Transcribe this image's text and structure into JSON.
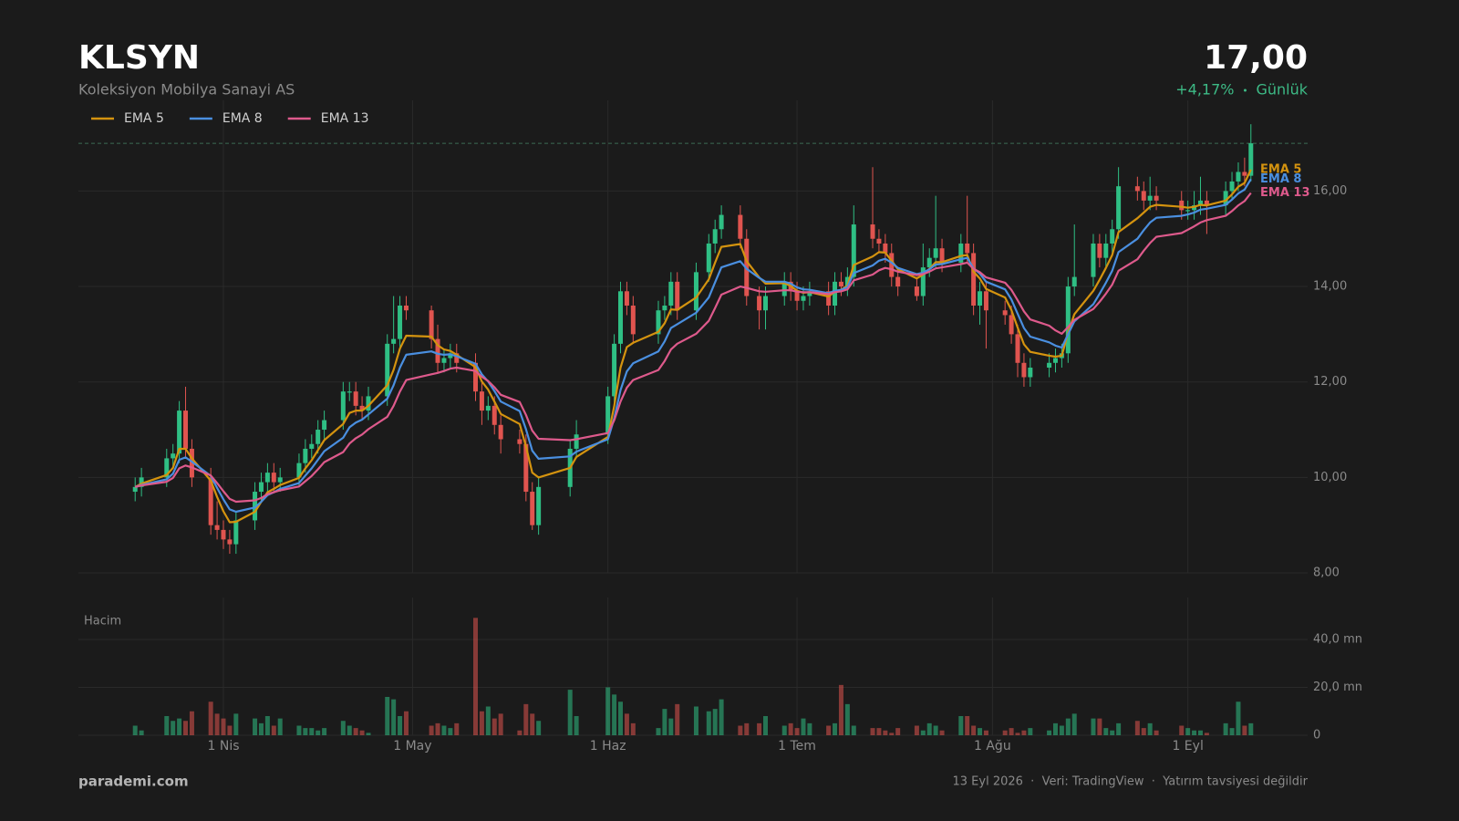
{
  "chart_data": {
    "type": "candlestick",
    "title": "KLSYN",
    "subtitle": "Koleksiyon Mobilya Sanayi AS",
    "last_price": {
      "value": 17,
      "label": "17,00"
    },
    "change": {
      "value": 4.17,
      "label": "+4,17%"
    },
    "period": "Günlük",
    "volume_label": "Hacim",
    "brand": "parademi.com",
    "footer": "13 Eyl 2026  ·  Veri: TradingView  ·  Yatırım tavsiyesi değildir",
    "up_color": "#2fbf84",
    "down_color": "#e0544f",
    "change_color": "#3dbb86",
    "x": [
      "2026-03-18",
      "2026-03-19",
      "2026-03-23",
      "2026-03-24",
      "2026-03-25",
      "2026-03-26",
      "2026-03-27",
      "2026-03-30",
      "2026-03-31",
      "2026-04-01",
      "2026-04-02",
      "2026-04-03",
      "2026-04-06",
      "2026-04-07",
      "2026-04-08",
      "2026-04-09",
      "2026-04-10",
      "2026-04-13",
      "2026-04-14",
      "2026-04-15",
      "2026-04-16",
      "2026-04-17",
      "2026-04-20",
      "2026-04-21",
      "2026-04-22",
      "2026-04-23",
      "2026-04-24",
      "2026-04-27",
      "2026-04-28",
      "2026-04-29",
      "2026-04-30",
      "2026-05-04",
      "2026-05-05",
      "2026-05-06",
      "2026-05-07",
      "2026-05-08",
      "2026-05-11",
      "2026-05-12",
      "2026-05-13",
      "2026-05-14",
      "2026-05-15",
      "2026-05-18",
      "2026-05-19",
      "2026-05-20",
      "2026-05-21",
      "2026-05-26",
      "2026-05-27",
      "2026-06-01",
      "2026-06-02",
      "2026-06-03",
      "2026-06-04",
      "2026-06-05",
      "2026-06-09",
      "2026-06-10",
      "2026-06-11",
      "2026-06-12",
      "2026-06-15",
      "2026-06-17",
      "2026-06-18",
      "2026-06-19",
      "2026-06-22",
      "2026-06-23",
      "2026-06-25",
      "2026-06-26",
      "2026-06-29",
      "2026-06-30",
      "2026-07-01",
      "2026-07-02",
      "2026-07-03",
      "2026-07-06",
      "2026-07-07",
      "2026-07-08",
      "2026-07-09",
      "2026-07-10",
      "2026-07-13",
      "2026-07-14",
      "2026-07-15",
      "2026-07-16",
      "2026-07-17",
      "2026-07-20",
      "2026-07-21",
      "2026-07-22",
      "2026-07-23",
      "2026-07-24",
      "2026-07-27",
      "2026-07-28",
      "2026-07-29",
      "2026-07-30",
      "2026-07-31",
      "2026-08-03",
      "2026-08-04",
      "2026-08-05",
      "2026-08-06",
      "2026-08-07",
      "2026-08-10",
      "2026-08-11",
      "2026-08-12",
      "2026-08-13",
      "2026-08-14",
      "2026-08-17",
      "2026-08-18",
      "2026-08-19",
      "2026-08-20",
      "2026-08-21",
      "2026-08-24",
      "2026-08-25",
      "2026-08-26",
      "2026-08-27",
      "2026-08-31",
      "2026-09-01",
      "2026-09-02",
      "2026-09-03",
      "2026-09-04",
      "2026-09-07",
      "2026-09-08",
      "2026-09-09",
      "2026-09-10",
      "2026-09-11"
    ],
    "open": [
      9.7,
      9.8,
      10.0,
      10.4,
      10.5,
      11.4,
      10.6,
      10.0,
      9.0,
      8.9,
      8.7,
      8.6,
      9.1,
      9.7,
      9.9,
      10.1,
      9.9,
      10.0,
      10.3,
      10.6,
      10.7,
      11.0,
      11.2,
      11.8,
      11.8,
      11.5,
      11.4,
      11.7,
      12.8,
      12.9,
      13.6,
      13.5,
      12.9,
      12.4,
      12.5,
      12.6,
      12.4,
      11.8,
      11.4,
      11.5,
      11.1,
      10.8,
      10.7,
      9.7,
      9.0,
      9.8,
      10.6,
      10.9,
      11.7,
      12.8,
      13.9,
      13.6,
      13.0,
      13.5,
      13.6,
      14.1,
      13.5,
      14.3,
      14.9,
      15.2,
      15.5,
      15.0,
      13.8,
      13.5,
      13.8,
      14.1,
      13.9,
      13.7,
      13.8,
      13.9,
      13.6,
      14.1,
      14.0,
      14.2,
      15.3,
      15.0,
      14.9,
      14.7,
      14.2,
      14.0,
      13.8,
      14.4,
      14.6,
      14.8,
      14.5,
      14.9,
      14.7,
      13.6,
      13.9,
      13.5,
      13.4,
      13.0,
      12.4,
      12.1,
      12.3,
      12.4,
      12.5,
      12.6,
      14.0,
      14.2,
      14.9,
      14.6,
      14.9,
      15.2,
      16.1,
      16.0,
      15.8,
      15.9,
      15.8,
      15.6,
      15.6,
      15.7,
      15.8,
      15.7,
      16.0,
      16.2,
      16.4,
      16.32
    ],
    "high": [
      10.0,
      10.2,
      10.6,
      10.7,
      11.6,
      11.9,
      10.8,
      10.2,
      9.5,
      9.1,
      8.9,
      9.3,
      9.9,
      10.1,
      10.3,
      10.3,
      10.2,
      10.5,
      10.8,
      10.9,
      11.2,
      11.4,
      12.0,
      12.0,
      12.0,
      11.7,
      11.9,
      13.0,
      13.8,
      13.8,
      13.8,
      13.6,
      13.2,
      12.7,
      12.8,
      12.8,
      12.6,
      12.0,
      11.7,
      11.7,
      11.3,
      11.0,
      10.9,
      9.9,
      10.0,
      10.8,
      11.2,
      11.9,
      13.0,
      14.1,
      14.1,
      13.8,
      13.7,
      13.8,
      14.3,
      14.3,
      14.5,
      15.1,
      15.4,
      15.7,
      15.7,
      15.2,
      14.0,
      14.0,
      14.3,
      14.3,
      14.1,
      14.0,
      14.1,
      14.1,
      14.3,
      14.3,
      14.4,
      15.7,
      16.5,
      15.2,
      15.1,
      14.9,
      14.4,
      14.2,
      14.9,
      14.8,
      15.9,
      15.0,
      15.1,
      15.9,
      14.9,
      14.1,
      14.1,
      13.7,
      13.6,
      13.2,
      12.6,
      12.5,
      12.6,
      12.7,
      12.8,
      14.2,
      15.3,
      15.1,
      15.1,
      15.1,
      15.4,
      16.5,
      16.3,
      16.2,
      16.3,
      16.1,
      16.0,
      15.8,
      16.0,
      16.3,
      16.0,
      16.2,
      16.4,
      16.6,
      16.7,
      17.4
    ],
    "low": [
      9.5,
      9.6,
      9.8,
      10.2,
      10.3,
      10.4,
      9.8,
      8.8,
      8.7,
      8.5,
      8.4,
      8.4,
      8.9,
      9.5,
      9.7,
      9.7,
      9.7,
      9.8,
      10.1,
      10.4,
      10.5,
      10.8,
      11.0,
      11.6,
      11.3,
      11.2,
      11.2,
      11.5,
      12.6,
      12.7,
      13.3,
      12.7,
      12.2,
      12.2,
      12.3,
      12.2,
      11.6,
      11.1,
      11.2,
      10.9,
      10.5,
      10.5,
      9.5,
      8.9,
      8.8,
      9.6,
      10.4,
      10.7,
      11.5,
      12.6,
      13.4,
      12.8,
      12.8,
      13.3,
      13.4,
      13.3,
      13.3,
      14.1,
      14.7,
      15.0,
      14.8,
      13.6,
      13.1,
      13.1,
      13.6,
      13.7,
      13.5,
      13.5,
      13.6,
      13.4,
      13.4,
      13.8,
      13.8,
      14.0,
      14.8,
      14.7,
      14.5,
      14.0,
      13.8,
      13.7,
      13.6,
      14.2,
      14.4,
      14.3,
      14.3,
      14.5,
      13.4,
      13.2,
      12.7,
      13.2,
      12.8,
      12.1,
      11.9,
      11.9,
      12.1,
      12.2,
      12.3,
      12.4,
      13.8,
      14.0,
      14.4,
      14.4,
      14.7,
      15.0,
      15.8,
      15.6,
      15.6,
      15.6,
      15.4,
      15.4,
      15.4,
      15.5,
      15.1,
      15.5,
      15.8,
      16.0,
      16.1,
      16.2
    ],
    "close": [
      9.8,
      10.0,
      10.4,
      10.5,
      11.4,
      10.6,
      10.0,
      9.0,
      8.9,
      8.7,
      8.6,
      9.1,
      9.7,
      9.9,
      10.1,
      9.9,
      10.0,
      10.3,
      10.6,
      10.7,
      11.0,
      11.2,
      11.8,
      11.8,
      11.5,
      11.4,
      11.7,
      12.8,
      12.9,
      13.6,
      13.5,
      12.9,
      12.4,
      12.5,
      12.6,
      12.4,
      11.8,
      11.4,
      11.5,
      11.1,
      10.8,
      10.7,
      9.7,
      9.0,
      9.8,
      10.6,
      10.9,
      11.7,
      12.8,
      13.9,
      13.6,
      13.0,
      13.5,
      13.6,
      14.1,
      13.5,
      14.3,
      14.9,
      15.2,
      15.5,
      15.0,
      13.8,
      13.5,
      13.8,
      14.1,
      13.9,
      13.7,
      13.8,
      13.9,
      13.6,
      14.1,
      14.0,
      14.2,
      15.3,
      15.0,
      14.9,
      14.7,
      14.2,
      14.0,
      13.8,
      14.4,
      14.6,
      14.8,
      14.5,
      14.9,
      14.7,
      13.6,
      13.9,
      13.5,
      13.4,
      13.0,
      12.4,
      12.1,
      12.3,
      12.4,
      12.5,
      12.6,
      14.0,
      14.2,
      14.9,
      14.6,
      14.9,
      15.2,
      16.1,
      16.0,
      15.8,
      15.9,
      15.8,
      15.6,
      15.6,
      15.7,
      15.8,
      15.7,
      16.0,
      16.2,
      16.4,
      16.32,
      17.0
    ],
    "volume": [
      4,
      2,
      8,
      6,
      7,
      6,
      10,
      14,
      9,
      7,
      4,
      9,
      7,
      5,
      8,
      4,
      7,
      4,
      3,
      3,
      2,
      3,
      6,
      4,
      3,
      2,
      1,
      16,
      15,
      8,
      10,
      4,
      5,
      4,
      3,
      5,
      49,
      10,
      12,
      7,
      9,
      2,
      13,
      9,
      6,
      19,
      8,
      20,
      17,
      14,
      9,
      5,
      3,
      11,
      7,
      13,
      12,
      10,
      11,
      15,
      4,
      5,
      5,
      8,
      4,
      5,
      3,
      7,
      5,
      4,
      5,
      21,
      13,
      4,
      3,
      3,
      2,
      1,
      3,
      4,
      2,
      5,
      4,
      2,
      8,
      8,
      4,
      3,
      2,
      2,
      3,
      1,
      2,
      3,
      2,
      5,
      4,
      7,
      9,
      7,
      7,
      3,
      2,
      5,
      6,
      3,
      5,
      2,
      4,
      3,
      2,
      2,
      1,
      5,
      3,
      14,
      4,
      5
    ],
    "series": [
      {
        "name": "EMA 5",
        "color": "#d4930f",
        "values": [
          9.8,
          9.87,
          10.05,
          10.2,
          10.6,
          10.6,
          10.4,
          9.93,
          9.59,
          9.29,
          9.06,
          9.07,
          9.28,
          9.49,
          9.69,
          9.76,
          9.84,
          9.99,
          10.19,
          10.36,
          10.57,
          10.78,
          11.12,
          11.35,
          11.4,
          11.4,
          11.5,
          11.93,
          12.25,
          12.7,
          12.97,
          12.95,
          12.77,
          12.68,
          12.65,
          12.57,
          12.31,
          12.01,
          11.84,
          11.59,
          11.33,
          11.12,
          10.65,
          10.1,
          10.0,
          10.2,
          10.43,
          10.85,
          11.5,
          12.3,
          12.73,
          12.82,
          13.05,
          13.23,
          13.52,
          13.51,
          13.77,
          14.15,
          14.5,
          14.83,
          14.89,
          14.53,
          14.19,
          14.06,
          14.07,
          14.01,
          13.91,
          13.87,
          13.88,
          13.79,
          13.89,
          13.93,
          14.02,
          14.45,
          14.63,
          14.72,
          14.71,
          14.54,
          14.36,
          14.17,
          14.25,
          14.37,
          14.51,
          14.51,
          14.64,
          14.66,
          14.31,
          14.17,
          13.95,
          13.77,
          13.51,
          13.14,
          12.79,
          12.63,
          12.55,
          12.53,
          12.55,
          13.03,
          13.42,
          13.91,
          14.14,
          14.39,
          14.66,
          15.14,
          15.43,
          15.55,
          15.67,
          15.71,
          15.67,
          15.65,
          15.67,
          15.71,
          15.7,
          15.8,
          15.93,
          16.09,
          16.17,
          16.45
        ]
      },
      {
        "name": "EMA 8",
        "color": "#4a8fe0",
        "values": [
          9.8,
          9.84,
          9.96,
          10.08,
          10.37,
          10.42,
          10.33,
          10.03,
          9.78,
          9.54,
          9.33,
          9.28,
          9.37,
          9.49,
          9.63,
          9.69,
          9.76,
          9.88,
          10.04,
          10.19,
          10.37,
          10.55,
          10.83,
          11.05,
          11.15,
          11.21,
          11.32,
          11.65,
          11.93,
          12.3,
          12.57,
          12.64,
          12.59,
          12.57,
          12.58,
          12.54,
          12.38,
          12.16,
          12.01,
          11.81,
          11.59,
          11.39,
          11.01,
          10.56,
          10.39,
          10.44,
          10.54,
          10.8,
          11.24,
          11.83,
          12.22,
          12.39,
          12.64,
          12.85,
          13.13,
          13.21,
          13.45,
          13.77,
          14.09,
          14.4,
          14.53,
          14.37,
          14.18,
          14.1,
          14.1,
          14.06,
          13.98,
          13.94,
          13.93,
          13.86,
          13.91,
          13.93,
          13.99,
          14.28,
          14.44,
          14.54,
          14.58,
          14.5,
          14.39,
          14.26,
          14.29,
          14.36,
          14.46,
          14.47,
          14.57,
          14.6,
          14.38,
          14.27,
          14.1,
          13.94,
          13.73,
          13.43,
          13.13,
          12.95,
          12.83,
          12.76,
          12.72,
          13.0,
          13.27,
          13.63,
          13.85,
          14.08,
          14.33,
          14.72,
          15.0,
          15.18,
          15.34,
          15.44,
          15.48,
          15.51,
          15.55,
          15.61,
          15.63,
          15.71,
          15.82,
          15.95,
          16.03,
          16.25
        ]
      },
      {
        "name": "EMA 13",
        "color": "#de5a8c",
        "values": [
          9.8,
          9.83,
          9.91,
          9.99,
          10.19,
          10.25,
          10.21,
          10.04,
          9.88,
          9.71,
          9.55,
          9.49,
          9.52,
          9.57,
          9.65,
          9.69,
          9.73,
          9.81,
          9.92,
          10.03,
          10.17,
          10.32,
          10.53,
          10.71,
          10.82,
          10.9,
          11.01,
          11.27,
          11.5,
          11.8,
          12.04,
          12.16,
          12.19,
          12.23,
          12.28,
          12.3,
          12.23,
          12.11,
          12.02,
          11.89,
          11.73,
          11.58,
          11.31,
          10.98,
          10.81,
          10.78,
          10.8,
          10.93,
          11.2,
          11.59,
          11.88,
          12.04,
          12.25,
          12.44,
          12.68,
          12.8,
          13.01,
          13.28,
          13.55,
          13.83,
          14.0,
          13.97,
          13.9,
          13.89,
          13.92,
          13.92,
          13.89,
          13.88,
          13.88,
          13.84,
          13.88,
          13.9,
          13.94,
          14.13,
          14.25,
          14.34,
          14.39,
          14.36,
          14.31,
          14.24,
          14.26,
          14.31,
          14.38,
          14.4,
          14.47,
          14.5,
          14.37,
          14.3,
          14.19,
          14.08,
          13.93,
          13.71,
          13.48,
          13.31,
          13.18,
          13.08,
          13.01,
          13.15,
          13.3,
          13.53,
          13.68,
          13.85,
          14.04,
          14.33,
          14.57,
          14.75,
          14.91,
          15.04,
          15.12,
          15.19,
          15.26,
          15.34,
          15.39,
          15.48,
          15.58,
          15.7,
          15.79,
          15.96
        ]
      }
    ],
    "xlim": [
      "2026-03-09",
      "2026-09-20"
    ],
    "xticks": [
      {
        "value": "2026-04-01",
        "label": "1 Nis"
      },
      {
        "value": "2026-05-01",
        "label": "1 May"
      },
      {
        "value": "2026-06-01",
        "label": "1 Haz"
      },
      {
        "value": "2026-07-01",
        "label": "1 Tem"
      },
      {
        "value": "2026-08-01",
        "label": "1 Ağu"
      },
      {
        "value": "2026-09-01",
        "label": "1 Eyl"
      }
    ],
    "ylim": [
      8,
      17.9
    ],
    "yticks": [
      {
        "value": 8,
        "label": "8,00"
      },
      {
        "value": 10,
        "label": "10,00"
      },
      {
        "value": 12,
        "label": "12,00"
      },
      {
        "value": 14,
        "label": "14,00"
      },
      {
        "value": 16,
        "label": "16,00"
      }
    ],
    "volume_ylim": [
      0,
      57.5
    ],
    "volume_yticks": [
      0,
      {
        "value": 20,
        "label": "20,0 mn"
      },
      {
        "value": 40,
        "label": "40,0 mn"
      }
    ],
    "grid": true
  }
}
